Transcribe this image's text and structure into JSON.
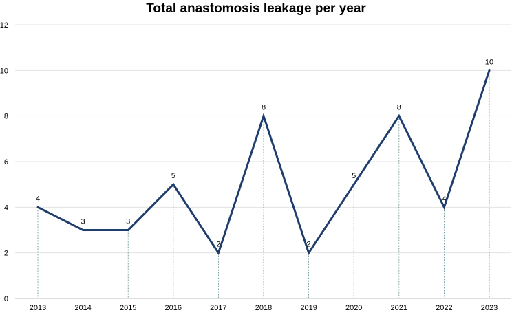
{
  "chart_data": {
    "type": "line",
    "title": "Total anastomosis leakage per year",
    "xlabel": "",
    "ylabel": "",
    "categories": [
      "2013",
      "2014",
      "2015",
      "2016",
      "2017",
      "2018",
      "2019",
      "2020",
      "2021",
      "2022",
      "2023"
    ],
    "series": [
      {
        "name": "Total anastomosis leakage",
        "values": [
          4,
          3,
          3,
          5,
          2,
          8,
          2,
          5,
          8,
          4,
          10
        ]
      }
    ],
    "data_labels": [
      "4",
      "3",
      "3",
      "5",
      "2",
      "8",
      "2",
      "5",
      "8",
      "4",
      "10"
    ],
    "ylim": [
      0,
      12
    ],
    "yticks": [
      "0",
      "2",
      "4",
      "6",
      "8",
      "10",
      "12"
    ],
    "grid": true,
    "drop_lines": true,
    "line_color": "#1f3e6e",
    "grid_color": "#e3e3e3",
    "drop_line_color": "#5a8a8a"
  }
}
